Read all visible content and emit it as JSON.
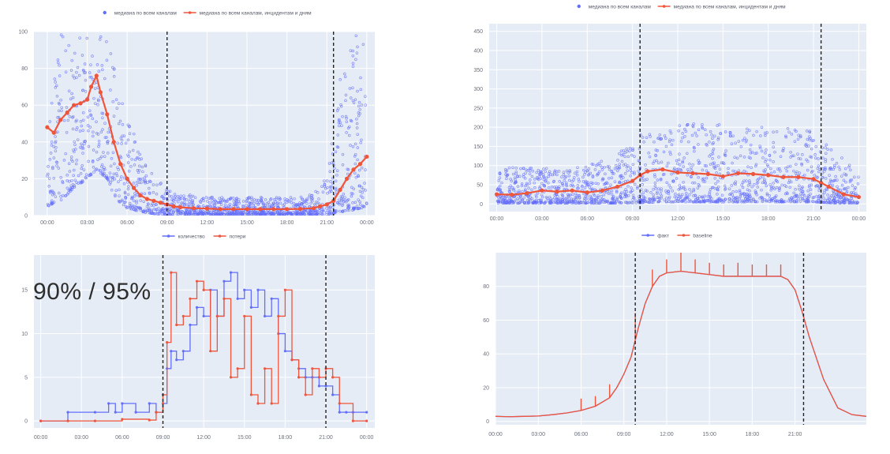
{
  "overlay_text": "90% / 95%",
  "colors": {
    "blue": "#636efa",
    "red": "#ef553b",
    "plot_bg": "#e5ecf6",
    "grid": "#ffffff",
    "vline": "#222222"
  },
  "chart_data": [
    {
      "id": "top-left",
      "type": "scatter",
      "legend": [
        {
          "name": "медиана по всем каналам",
          "symbol": "marker",
          "color": "#636efa"
        },
        {
          "name": "медиана по всем каналам, инцидентам и дням",
          "symbol": "line",
          "color": "#ef553b"
        }
      ],
      "legend_position": "top",
      "x_ticks": [
        "00:00",
        "03:00",
        "06:00",
        "09:00",
        "12:00",
        "15:00",
        "18:00",
        "21:00",
        "00:00"
      ],
      "x_range": [
        -1,
        24.6
      ],
      "y_ticks": [
        0,
        20,
        40,
        60,
        80,
        100
      ],
      "y_range": [
        0,
        100
      ],
      "vlines": [
        9,
        21.5
      ],
      "series": [
        {
          "name": "медиана по всем каналам, инцидентам и дням",
          "style": "line-markers",
          "color": "#ef553b",
          "x": [
            0,
            0.5,
            1,
            1.5,
            2,
            2.5,
            3,
            3.3,
            3.7,
            4,
            4.5,
            5,
            5.5,
            6,
            6.5,
            7,
            7.5,
            8,
            8.5,
            9,
            9.5,
            10,
            11,
            12,
            13,
            14,
            15,
            16,
            17,
            18,
            19,
            20,
            20.5,
            21,
            21.5,
            22,
            22.5,
            23,
            23.5,
            24
          ],
          "y": [
            48,
            45,
            52,
            56,
            60,
            61,
            63,
            70,
            76,
            67,
            55,
            40,
            28,
            20,
            15,
            11,
            9,
            8,
            7,
            6,
            5,
            4.5,
            4,
            3.8,
            3.5,
            3.5,
            3.5,
            3.5,
            3.5,
            3.5,
            3.6,
            4,
            5,
            6,
            8,
            14,
            20,
            25,
            28,
            32
          ]
        },
        {
          "name": "медиана по всем каналам",
          "style": "scatter-cloud",
          "color": "#636efa",
          "envelope_x": [
            0,
            1,
            2,
            3,
            3.7,
            4.5,
            5,
            6,
            7,
            8,
            9,
            10,
            12,
            14,
            16,
            18,
            19,
            20,
            21,
            21.5,
            22,
            23,
            24
          ],
          "envelope_y_low": [
            5,
            8,
            15,
            20,
            25,
            20,
            10,
            4,
            2,
            1,
            0.5,
            0.5,
            0.5,
            0.5,
            0.5,
            0.5,
            0.5,
            0.5,
            0.5,
            1,
            2,
            3,
            5
          ],
          "envelope_y_high": [
            95,
            100,
            100,
            100,
            100,
            95,
            85,
            55,
            35,
            22,
            15,
            12,
            10,
            10,
            10,
            10,
            10,
            12,
            22,
            45,
            80,
            100,
            100
          ]
        }
      ]
    },
    {
      "id": "top-right",
      "type": "scatter",
      "legend": [
        {
          "name": "медиана по всем каналам",
          "symbol": "marker",
          "color": "#636efa"
        },
        {
          "name": "медиана по всем каналам, инцидентам и дням",
          "symbol": "line",
          "color": "#ef553b"
        }
      ],
      "legend_position": "top",
      "x_ticks": [
        "00:00",
        "03:00",
        "06:00",
        "09:00",
        "12:00",
        "15:00",
        "18:00",
        "21:00",
        "00:00"
      ],
      "x_range": [
        -0.5,
        24.5
      ],
      "y_ticks": [
        0,
        50,
        100,
        150,
        200,
        250,
        300,
        350,
        400,
        450
      ],
      "y_range": [
        -20,
        470
      ],
      "vlines": [
        9.5,
        21.5
      ],
      "series": [
        {
          "name": "медиана по всем каналам, инцидентам и дням",
          "style": "line-markers",
          "color": "#ef553b",
          "x": [
            0,
            1,
            2,
            3,
            4,
            5,
            6,
            7,
            8,
            9,
            9.5,
            10,
            11,
            12,
            13,
            14,
            15,
            16,
            17,
            18,
            19,
            20,
            21,
            21.5,
            22,
            23,
            24
          ],
          "y": [
            25,
            24,
            28,
            35,
            32,
            35,
            30,
            35,
            45,
            60,
            75,
            85,
            90,
            82,
            80,
            78,
            72,
            80,
            78,
            75,
            70,
            70,
            65,
            55,
            45,
            25,
            18
          ]
        },
        {
          "name": "медиана по всем каналам",
          "style": "scatter-cloud",
          "color": "#636efa",
          "envelope_x": [
            0,
            2,
            4,
            6,
            8,
            9.5,
            11,
            13,
            15,
            17,
            19,
            21,
            22,
            23,
            24
          ],
          "envelope_y_low": [
            2,
            2,
            2,
            2,
            2,
            3,
            5,
            5,
            5,
            5,
            5,
            5,
            3,
            2,
            2
          ],
          "envelope_y_high": [
            90,
            100,
            90,
            100,
            130,
            180,
            200,
            210,
            210,
            200,
            200,
            190,
            150,
            120,
            80
          ]
        }
      ]
    },
    {
      "id": "bottom-left",
      "type": "line",
      "legend": [
        {
          "name": "количество",
          "symbol": "line",
          "color": "#636efa"
        },
        {
          "name": "потери",
          "symbol": "line",
          "color": "#ef553b"
        }
      ],
      "legend_position": "top",
      "x_ticks": [
        "00:00",
        "03:00",
        "06:00",
        "09:00",
        "12:00",
        "15:00",
        "18:00",
        "21:00",
        "00:00"
      ],
      "x_range": [
        -0.5,
        24.6
      ],
      "y_ticks": [
        0,
        5,
        10,
        15
      ],
      "y_tick_labels": [
        "0",
        "5",
        "10",
        "15"
      ],
      "y_range": [
        -0.8,
        19
      ],
      "vlines": [
        9,
        21
      ],
      "series": [
        {
          "name": "количество",
          "style": "step-markers",
          "color": "#636efa",
          "x": [
            0,
            2,
            4,
            5,
            5.5,
            6,
            7,
            8,
            8.5,
            9,
            9.3,
            9.6,
            10,
            10.5,
            11,
            11.5,
            12,
            12.5,
            13,
            13.5,
            14,
            14.5,
            15,
            15.5,
            16,
            16.5,
            17,
            17.5,
            18,
            18.5,
            19,
            19.5,
            20,
            20.5,
            21,
            21.5,
            22,
            22.5,
            23,
            24
          ],
          "y": [
            0,
            1,
            1,
            2,
            1,
            2,
            1,
            2,
            1,
            2,
            6,
            8,
            7,
            8,
            11,
            13,
            12,
            15,
            12,
            16,
            17,
            14,
            15,
            13,
            15,
            12,
            14,
            10,
            8,
            7,
            6,
            5,
            5,
            4,
            4,
            3,
            1,
            1,
            1,
            1
          ]
        },
        {
          "name": "потери",
          "style": "step-markers",
          "color": "#ef553b",
          "x": [
            0,
            2,
            4,
            6,
            8,
            8.5,
            9,
            9.3,
            9.6,
            10,
            10.5,
            11,
            11.5,
            12,
            12.5,
            13,
            13.5,
            14,
            14.5,
            15,
            15.5,
            16,
            16.5,
            17,
            17.5,
            18,
            18.5,
            19,
            19.5,
            20,
            20.5,
            21,
            21.5,
            22,
            23,
            24
          ],
          "y": [
            0,
            0,
            0,
            0.2,
            0.1,
            1,
            3,
            9,
            17,
            11,
            12,
            14,
            16,
            15,
            8,
            12,
            14,
            5,
            6,
            12,
            3,
            2,
            6,
            2,
            12,
            15,
            7,
            5,
            3,
            6,
            5,
            6,
            5,
            2,
            0,
            0
          ]
        }
      ]
    },
    {
      "id": "bottom-right",
      "type": "line",
      "legend": [
        {
          "name": "факт",
          "symbol": "line",
          "color": "#636efa"
        },
        {
          "name": "baseline",
          "symbol": "line",
          "color": "#ef553b"
        }
      ],
      "legend_position": "top",
      "x_ticks": [
        "00:00",
        "03:00",
        "06:00",
        "09:00",
        "12:00",
        "15:00",
        "18:00",
        "21:00"
      ],
      "x_range": [
        0,
        26
      ],
      "y_ticks": [
        0,
        20,
        40,
        60,
        80
      ],
      "y_range": [
        -2,
        100
      ],
      "vlines": [
        9.8,
        21.6
      ],
      "series": [
        {
          "name": "факт",
          "style": "line",
          "color": "#636efa",
          "x": [
            0,
            1,
            2,
            3,
            4,
            5,
            6,
            7,
            8,
            8.5,
            9,
            9.5,
            10,
            10.5,
            11,
            11.5,
            12,
            13,
            14,
            15,
            16,
            17,
            18,
            19,
            20,
            20.5,
            21,
            21.5,
            22,
            23,
            24,
            25,
            26
          ],
          "y": [
            3,
            2.8,
            3,
            3.2,
            4,
            5,
            6.5,
            9,
            14,
            20,
            28,
            38,
            55,
            70,
            80,
            86,
            88,
            89,
            88,
            87,
            86,
            86,
            86,
            86,
            86,
            84,
            78,
            65,
            50,
            25,
            8,
            4,
            3
          ]
        },
        {
          "name": "baseline",
          "style": "line-spikes",
          "color": "#ef553b",
          "x": [
            0,
            1,
            2,
            3,
            4,
            5,
            6,
            7,
            8,
            8.5,
            9,
            9.5,
            10,
            10.5,
            11,
            11.5,
            12,
            13,
            14,
            15,
            16,
            17,
            18,
            19,
            20,
            20.5,
            21,
            21.5,
            22,
            23,
            24,
            25,
            26
          ],
          "y": [
            3,
            2.8,
            3,
            3.2,
            4,
            5,
            6.5,
            9,
            14,
            20,
            28,
            38,
            55,
            70,
            80,
            86,
            88,
            89,
            88,
            87,
            86,
            86,
            86,
            86,
            86,
            84,
            78,
            65,
            50,
            25,
            8,
            4,
            3
          ],
          "spikes": [
            [
              6,
              7
            ],
            [
              7,
              6
            ],
            [
              8,
              8
            ],
            [
              9.8,
              16
            ],
            [
              11,
              10
            ],
            [
              12,
              8
            ],
            [
              13,
              12
            ],
            [
              14,
              8
            ],
            [
              15,
              7
            ],
            [
              16,
              7
            ],
            [
              17,
              8
            ],
            [
              18,
              7
            ],
            [
              19,
              7
            ],
            [
              20,
              7
            ]
          ]
        }
      ]
    }
  ]
}
